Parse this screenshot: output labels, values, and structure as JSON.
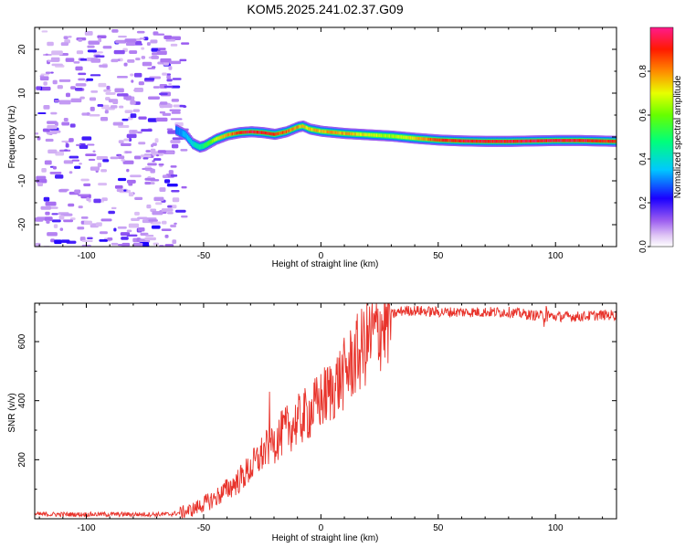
{
  "title": "KOM5.2025.241.02.37.G09",
  "chart_data": [
    {
      "type": "heatmap",
      "xlabel": "Height of straight line (km)",
      "ylabel": "Frequency (Hz)",
      "xlim": [
        -122,
        126
      ],
      "ylim": [
        -25,
        25
      ],
      "xticks": [
        -100,
        -50,
        0,
        50,
        100
      ],
      "yticks": [
        -20,
        -10,
        0,
        10,
        20
      ],
      "ridge_x": [
        -62,
        -58,
        -55,
        -52,
        -50,
        -45,
        -40,
        -35,
        -30,
        -25,
        -20,
        -15,
        -10,
        -8,
        -5,
        0,
        10,
        20,
        30,
        40,
        50,
        60,
        70,
        80,
        90,
        100,
        110,
        126
      ],
      "ridge_y": [
        1.6,
        0.5,
        -1.5,
        -2.3,
        -2.0,
        -0.5,
        0.5,
        1.0,
        1.2,
        1.0,
        0.6,
        1.2,
        2.3,
        2.5,
        1.8,
        1.3,
        0.8,
        0.5,
        0.2,
        -0.3,
        -0.7,
        -0.9,
        -1.0,
        -1.0,
        -0.9,
        -0.8,
        -0.8,
        -1.0
      ],
      "ridge_amp": [
        0.3,
        0.35,
        0.4,
        0.45,
        0.5,
        0.7,
        0.8,
        0.9,
        0.95,
        0.95,
        0.9,
        0.85,
        0.8,
        0.75,
        0.75,
        0.78,
        0.8,
        0.7,
        0.65,
        0.75,
        0.9,
        0.95,
        0.95,
        0.95,
        0.95,
        0.95,
        0.95,
        0.9
      ],
      "noise_region_x": [
        -122,
        -62
      ]
    },
    {
      "type": "colorbar",
      "label": "Normalized spectral amplitude",
      "range": [
        0,
        1
      ],
      "ticks": [
        "0.0",
        "0.2",
        "0.4",
        "0.6",
        "0.8"
      ],
      "tick_values": [
        0,
        0.2,
        0.4,
        0.6,
        0.8
      ]
    },
    {
      "type": "line",
      "xlabel": "Height of straight line (km)",
      "ylabel": "SNR (v/v)",
      "xlim": [
        -122,
        126
      ],
      "ylim": [
        0,
        730
      ],
      "xticks": [
        -100,
        -50,
        0,
        50,
        100
      ],
      "yticks": [
        200,
        400,
        600
      ],
      "series": [
        {
          "name": "SNR",
          "color": "#e8332b",
          "x": [
            -122,
            -100,
            -80,
            -65,
            -60,
            -55,
            -50,
            -45,
            -40,
            -35,
            -30,
            -25,
            -20,
            -15,
            -10,
            -5,
            0,
            5,
            10,
            15,
            20,
            25,
            30,
            35,
            40,
            50,
            60,
            70,
            80,
            90,
            100,
            110,
            120,
            126
          ],
          "y": [
            15,
            15,
            15,
            15,
            20,
            30,
            50,
            70,
            100,
            130,
            170,
            220,
            260,
            300,
            330,
            360,
            400,
            440,
            490,
            550,
            600,
            650,
            690,
            705,
            705,
            700,
            700,
            700,
            700,
            690,
            685,
            685,
            690,
            690
          ]
        }
      ]
    }
  ]
}
